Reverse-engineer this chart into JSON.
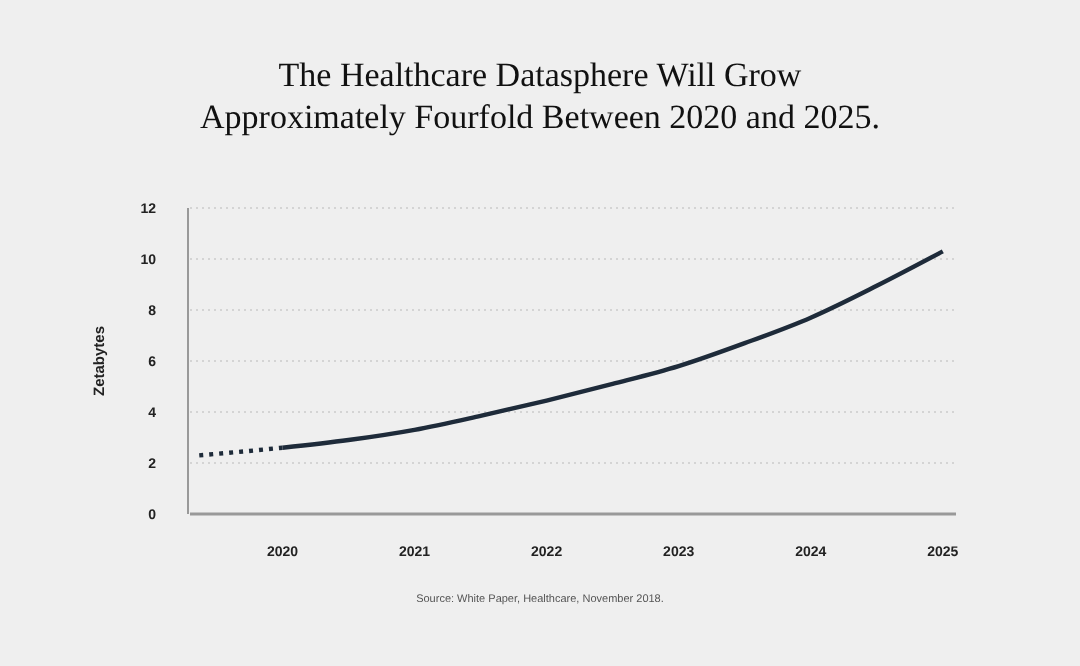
{
  "chart_data": {
    "type": "line",
    "title": "The Healthcare Datasphere Will Grow\nApproximately Fourfold Between 2020 and 2025.",
    "ylabel": "Zetabytes",
    "series": [
      {
        "color": "#1e2b3a",
        "line_style": "dotted",
        "x": [
          2019.37,
          2019.7,
          2020
        ],
        "values": [
          2.3,
          2.45,
          2.6
        ]
      },
      {
        "color": "#1e2b3a",
        "line_style": "solid",
        "x": [
          2020,
          2020.5,
          2021,
          2021.5,
          2022,
          2022.5,
          2023,
          2023.5,
          2024,
          2024.5,
          2025
        ],
        "values": [
          2.6,
          2.9,
          3.3,
          3.85,
          4.45,
          5.1,
          5.8,
          6.7,
          7.7,
          8.95,
          10.3
        ]
      }
    ],
    "xlim": [
      2019.3,
      2025.1
    ],
    "xticks": [
      2020,
      2021,
      2022,
      2023,
      2024,
      2025
    ],
    "ylim": [
      0,
      12
    ],
    "yticks": [
      0,
      2,
      4,
      6,
      8,
      10,
      12
    ],
    "grid": "y",
    "annotations": [
      "Source: White Paper, Healthcare, November 2018."
    ]
  }
}
